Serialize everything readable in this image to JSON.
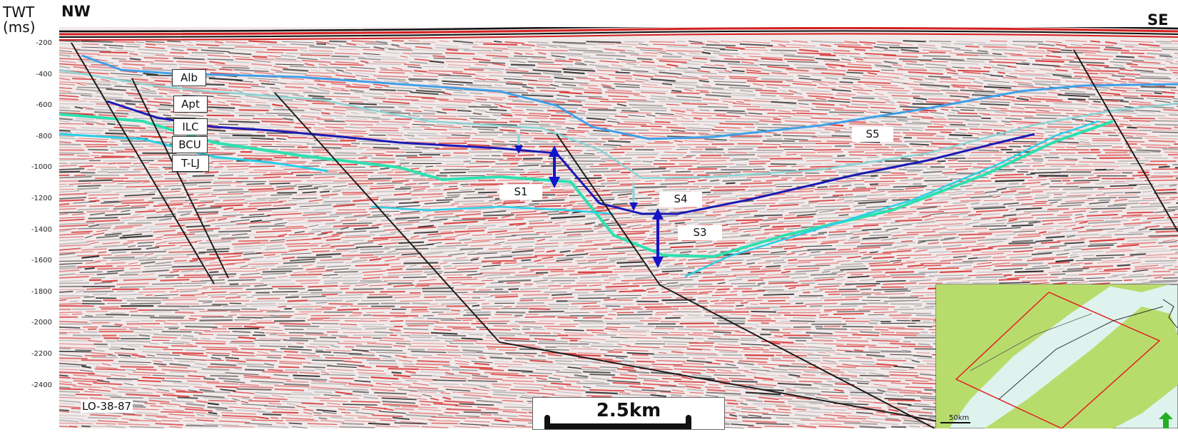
{
  "axis": {
    "title_line1": "TWT",
    "title_line2": "(ms)",
    "ticks": [
      "-200",
      "-400",
      "-600",
      "-800",
      "-1000",
      "-1200",
      "-1400",
      "-1600",
      "-1800",
      "-2000",
      "-2200",
      "-2400"
    ]
  },
  "directions": {
    "left": "NW",
    "right": "SE"
  },
  "horizons": [
    {
      "label": "Alb",
      "color": "#3fa0e8"
    },
    {
      "label": "Apt",
      "color": "#8ad4d4"
    },
    {
      "label": "ILC",
      "color": "#1a1ab4"
    },
    {
      "label": "BCU",
      "color": "#2ee0b0"
    },
    {
      "label": "T-LJ",
      "color": "#28d0e8"
    }
  ],
  "sequences": [
    "S1",
    "S3",
    "S4",
    "S5"
  ],
  "line_name": "LO-38-87",
  "scale_bar": {
    "label": "2.5km"
  },
  "inset_map": {
    "scale_label": "50km"
  },
  "colors": {
    "seismic_red": "#d42020",
    "seismic_black": "#111111",
    "fault": "#1c1c1c",
    "arrow": "#1414c8",
    "map_land": "#b8dc6c",
    "map_water": "#dff3ee",
    "map_frame": "#e02020",
    "north_arrow": "#22b022"
  }
}
